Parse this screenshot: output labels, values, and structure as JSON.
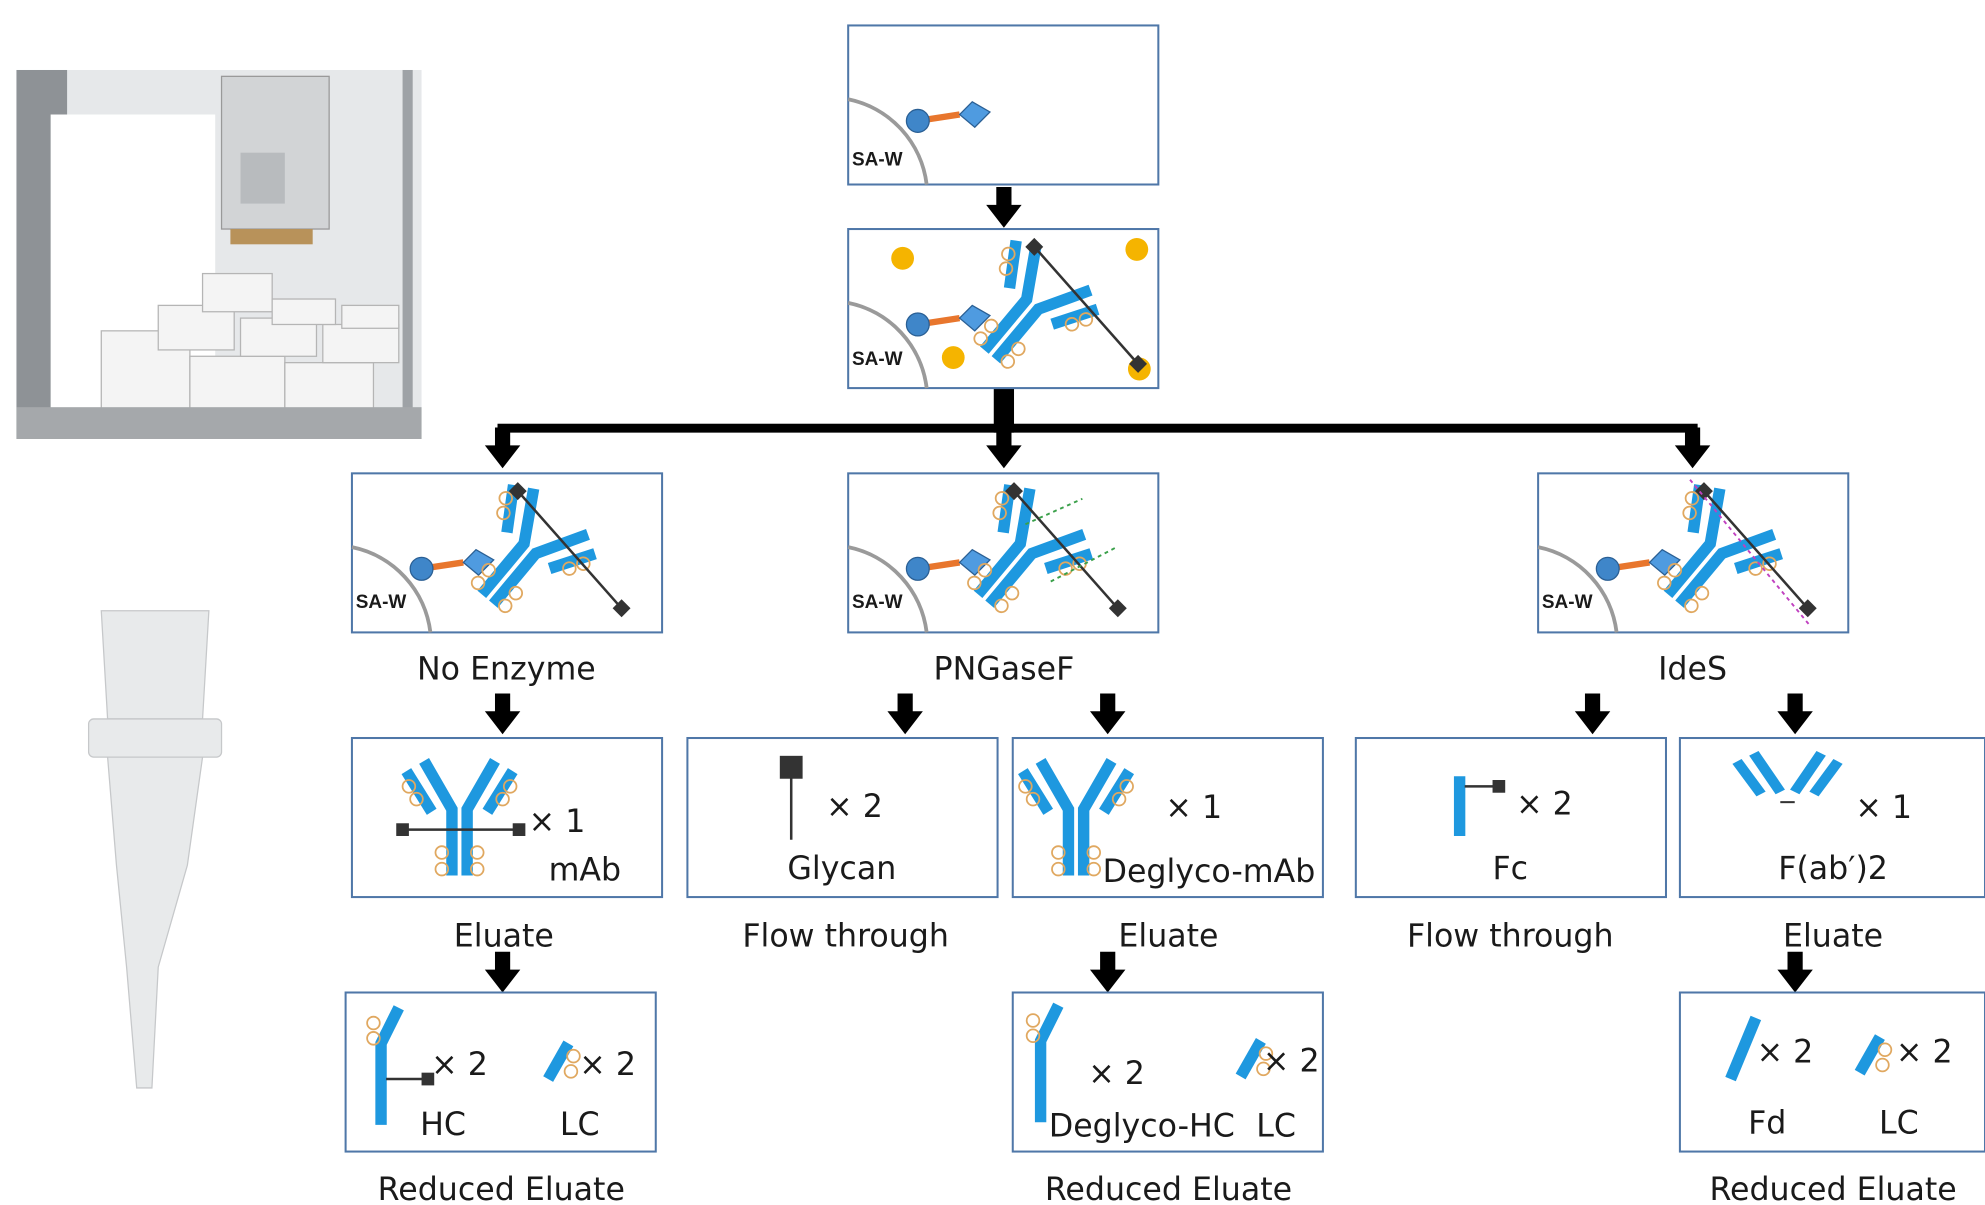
{
  "workflow": {
    "capture": {
      "bead_label": "SA-W"
    },
    "binding": {
      "bead_label": "SA-W"
    },
    "branches": [
      {
        "enzyme": "No Enzyme",
        "bead_label": "SA-W",
        "outputs": [
          {
            "fraction": "Eluate",
            "products": [
              {
                "count": "× 1",
                "name": "mAb"
              }
            ],
            "reduced": {
              "fraction": "Reduced Eluate",
              "products": [
                {
                  "count": "× 2",
                  "name": "HC"
                },
                {
                  "count": "× 2",
                  "name": "LC"
                }
              ]
            }
          }
        ]
      },
      {
        "enzyme": "PNGaseF",
        "bead_label": "SA-W",
        "outputs": [
          {
            "fraction": "Flow through",
            "products": [
              {
                "count": "× 2",
                "name": "Glycan"
              }
            ]
          },
          {
            "fraction": "Eluate",
            "products": [
              {
                "count": "× 1",
                "name": "Deglyco-mAb"
              }
            ],
            "reduced": {
              "fraction": "Reduced Eluate",
              "products": [
                {
                  "count": "× 2",
                  "name": "Deglyco-HC"
                },
                {
                  "count": "× 2",
                  "name": "LC"
                }
              ]
            }
          }
        ]
      },
      {
        "enzyme": "IdeS",
        "bead_label": "SA-W",
        "outputs": [
          {
            "fraction": "Flow through",
            "products": [
              {
                "count": "× 2",
                "name": "Fc"
              }
            ]
          },
          {
            "fraction": "Eluate",
            "products": [
              {
                "count": "× 1",
                "name": "F(ab′)2"
              }
            ],
            "reduced": {
              "fraction": "Reduced Eluate",
              "products": [
                {
                  "count": "× 2",
                  "name": "Fd"
                },
                {
                  "count": "× 2",
                  "name": "LC"
                }
              ]
            }
          }
        ]
      }
    ]
  }
}
